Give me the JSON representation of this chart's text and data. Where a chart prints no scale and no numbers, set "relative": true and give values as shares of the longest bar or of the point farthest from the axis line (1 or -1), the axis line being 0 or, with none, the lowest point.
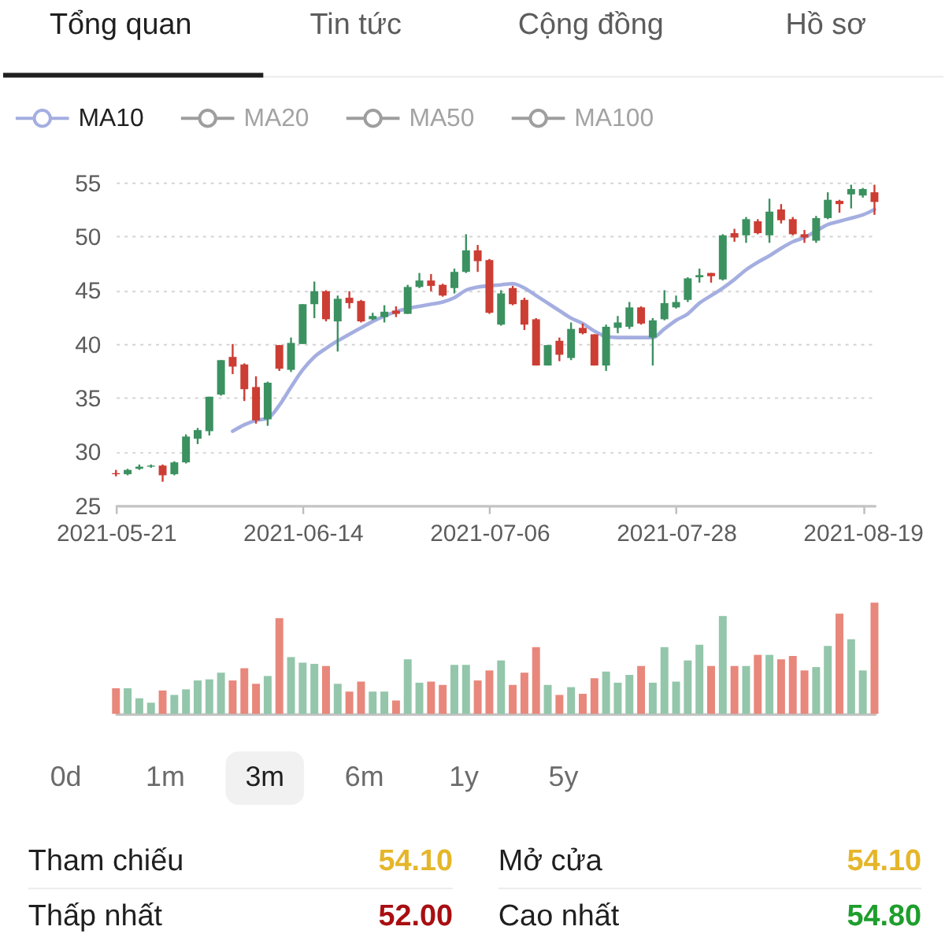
{
  "chart_data": [
    {
      "type": "other",
      "categories": [
        "Tổng quan",
        "Tin tức",
        "Cộng đồng",
        "Hồ sơ"
      ],
      "colors": [
        "#1f1f1f",
        "#5c5c5c",
        "#5c5c5c",
        "#5c5c5c"
      ]
    },
    {
      "type": "candlestick",
      "categories": [
        "2021-05-21",
        null,
        null,
        null,
        null,
        null,
        null,
        null,
        null,
        null,
        null,
        null,
        null,
        null,
        null,
        null,
        "2021-06-14",
        null,
        null,
        null,
        null,
        null,
        null,
        null,
        null,
        null,
        null,
        null,
        null,
        null,
        null,
        null,
        "2021-07-06",
        null,
        null,
        null,
        null,
        null,
        null,
        null,
        null,
        null,
        null,
        null,
        null,
        null,
        null,
        null,
        "2021-07-28",
        null,
        null,
        null,
        null,
        null,
        null,
        null,
        null,
        null,
        null,
        null,
        null,
        null,
        null,
        null,
        "2021-08-19",
        null
      ],
      "ohlc": [
        [
          28.0,
          28.3,
          27.7,
          27.9
        ],
        [
          27.9,
          28.4,
          27.8,
          28.3
        ],
        [
          28.4,
          28.8,
          28.3,
          28.6
        ],
        [
          28.6,
          28.8,
          28.5,
          28.7
        ],
        [
          28.7,
          28.8,
          27.2,
          27.8
        ],
        [
          27.9,
          29.1,
          27.8,
          29.0
        ],
        [
          29.0,
          31.6,
          28.9,
          31.4
        ],
        [
          31.2,
          32.2,
          30.7,
          32.0
        ],
        [
          31.9,
          35.1,
          31.5,
          35.1
        ],
        [
          35.3,
          38.5,
          35.2,
          38.5
        ],
        [
          38.8,
          40.0,
          37.2,
          37.9
        ],
        [
          38.1,
          38.2,
          34.7,
          35.8
        ],
        [
          36.0,
          37.0,
          32.6,
          32.9
        ],
        [
          33.0,
          36.5,
          32.4,
          36.4
        ],
        [
          39.9,
          39.9,
          37.5,
          37.7
        ],
        [
          37.6,
          40.6,
          37.4,
          40.1
        ],
        [
          40.0,
          43.7,
          40.0,
          43.7
        ],
        [
          43.7,
          45.8,
          42.4,
          44.9
        ],
        [
          44.9,
          45.0,
          42.1,
          42.3
        ],
        [
          42.1,
          44.5,
          39.3,
          44.2
        ],
        [
          44.3,
          44.9,
          43.3,
          43.8
        ],
        [
          44.0,
          44.1,
          42.0,
          42.1
        ],
        [
          42.3,
          42.9,
          42.2,
          42.6
        ],
        [
          42.5,
          43.6,
          42.0,
          43.0
        ],
        [
          43.1,
          43.5,
          42.5,
          42.8
        ],
        [
          42.8,
          45.5,
          42.8,
          45.3
        ],
        [
          45.3,
          46.6,
          45.2,
          45.9
        ],
        [
          45.9,
          46.5,
          44.9,
          45.4
        ],
        [
          45.5,
          45.6,
          44.4,
          44.5
        ],
        [
          45.2,
          47.0,
          44.7,
          46.7
        ],
        [
          46.7,
          50.2,
          46.6,
          48.7
        ],
        [
          48.7,
          49.2,
          46.7,
          47.7
        ],
        [
          47.8,
          47.9,
          42.8,
          42.9
        ],
        [
          41.8,
          45.0,
          41.7,
          44.7
        ],
        [
          45.2,
          45.4,
          43.6,
          43.7
        ],
        [
          44.1,
          44.3,
          41.3,
          41.8
        ],
        [
          42.3,
          42.4,
          38.0,
          38.0
        ],
        [
          38.0,
          39.9,
          38.0,
          39.9
        ],
        [
          40.3,
          40.6,
          38.4,
          39.0
        ],
        [
          38.7,
          42.0,
          38.5,
          41.4
        ],
        [
          41.5,
          41.9,
          40.9,
          41.0
        ],
        [
          40.9,
          40.9,
          38.0,
          38.0
        ],
        [
          38.0,
          41.8,
          37.5,
          41.6
        ],
        [
          41.5,
          42.6,
          41.0,
          42.0
        ],
        [
          41.6,
          43.9,
          41.4,
          43.4
        ],
        [
          43.4,
          43.5,
          41.8,
          41.9
        ],
        [
          40.6,
          42.4,
          38.0,
          42.2
        ],
        [
          42.3,
          45.0,
          42.2,
          43.8
        ],
        [
          43.4,
          44.5,
          43.3,
          43.9
        ],
        [
          44.1,
          46.2,
          43.9,
          46.1
        ],
        [
          46.2,
          47.0,
          45.7,
          46.4
        ],
        [
          46.6,
          46.6,
          45.7,
          46.3
        ],
        [
          46.0,
          50.2,
          45.9,
          50.1
        ],
        [
          50.3,
          50.7,
          49.5,
          49.9
        ],
        [
          50.1,
          51.8,
          49.4,
          51.6
        ],
        [
          51.4,
          51.6,
          50.2,
          50.3
        ],
        [
          50.1,
          53.5,
          49.4,
          52.3
        ],
        [
          52.5,
          53.0,
          51.2,
          51.5
        ],
        [
          51.6,
          51.8,
          50.1,
          50.2
        ],
        [
          50.2,
          50.6,
          49.4,
          49.9
        ],
        [
          49.6,
          51.9,
          49.4,
          51.7
        ],
        [
          51.7,
          54.1,
          51.6,
          53.4
        ],
        [
          53.3,
          53.4,
          52.2,
          53.0
        ],
        [
          53.9,
          54.8,
          52.6,
          54.4
        ],
        [
          53.8,
          54.5,
          53.6,
          54.4
        ],
        [
          54.1,
          54.8,
          52.0,
          53.2
        ]
      ],
      "colors": [
        "#cc3d33",
        "#3b9160",
        "#3b9160",
        "#3b9160",
        "#cc3d33",
        "#3b9160",
        "#3b9160",
        "#3b9160",
        "#3b9160",
        "#3b9160",
        "#cc3d33",
        "#cc3d33",
        "#cc3d33",
        "#3b9160",
        "#cc3d33",
        "#3b9160",
        "#3b9160",
        "#3b9160",
        "#cc3d33",
        "#3b9160",
        "#cc3d33",
        "#cc3d33",
        "#3b9160",
        "#3b9160",
        "#cc3d33",
        "#3b9160",
        "#3b9160",
        "#cc3d33",
        "#cc3d33",
        "#3b9160",
        "#3b9160",
        "#cc3d33",
        "#cc3d33",
        "#3b9160",
        "#cc3d33",
        "#cc3d33",
        "#cc3d33",
        "#3b9160",
        "#cc3d33",
        "#3b9160",
        "#cc3d33",
        "#cc3d33",
        "#3b9160",
        "#3b9160",
        "#3b9160",
        "#cc3d33",
        "#3b9160",
        "#3b9160",
        "#3b9160",
        "#3b9160",
        "#3b9160",
        "#cc3d33",
        "#3b9160",
        "#cc3d33",
        "#3b9160",
        "#cc3d33",
        "#3b9160",
        "#cc3d33",
        "#cc3d33",
        "#cc3d33",
        "#3b9160",
        "#3b9160",
        "#cc3d33",
        "#3b9160",
        "#3b9160",
        "#cc3d33"
      ],
      "series": [
        {
          "type": "line",
          "name": "MA10",
          "color": "#a4aee0",
          "values": [
            null,
            null,
            null,
            null,
            null,
            null,
            null,
            null,
            null,
            null,
            31.9,
            32.5,
            32.9,
            33.1,
            34.3,
            36.0,
            37.6,
            38.8,
            39.6,
            40.3,
            40.9,
            41.5,
            42.1,
            42.6,
            43.0,
            43.3,
            43.5,
            43.7,
            43.9,
            44.3,
            45.0,
            45.3,
            45.4,
            45.5,
            45.6,
            45.2,
            44.5,
            43.8,
            43.1,
            42.4,
            41.9,
            41.2,
            40.7,
            40.6,
            40.6,
            40.6,
            40.6,
            41.4,
            42.2,
            42.8,
            43.8,
            44.5,
            45.2,
            46.0,
            46.9,
            47.6,
            48.2,
            48.9,
            49.5,
            49.9,
            50.5,
            51.1,
            51.4,
            51.7,
            52.0,
            52.5
          ]
        },
        {
          "type": "line",
          "name": "MA20",
          "color": "#9e9e9e",
          "values": [
            null,
            null,
            null,
            null,
            null,
            null,
            null,
            null,
            null,
            null,
            null,
            null,
            null,
            null,
            null,
            null,
            null,
            null,
            null,
            null,
            null,
            null,
            null,
            null,
            null,
            null,
            null,
            null,
            null,
            null,
            null,
            null,
            null,
            null,
            null,
            null,
            null,
            null,
            null,
            null,
            null,
            null,
            null,
            null,
            null,
            null,
            null,
            null,
            null,
            null,
            null,
            null,
            null,
            null,
            null,
            null,
            null,
            null,
            null,
            null,
            null,
            null,
            null,
            null,
            null,
            null
          ]
        },
        {
          "type": "line",
          "name": "MA50",
          "color": "#9e9e9e",
          "values": [
            null,
            null,
            null,
            null,
            null,
            null,
            null,
            null,
            null,
            null,
            null,
            null,
            null,
            null,
            null,
            null,
            null,
            null,
            null,
            null,
            null,
            null,
            null,
            null,
            null,
            null,
            null,
            null,
            null,
            null,
            null,
            null,
            null,
            null,
            null,
            null,
            null,
            null,
            null,
            null,
            null,
            null,
            null,
            null,
            null,
            null,
            null,
            null,
            null,
            null,
            null,
            null,
            null,
            null,
            null,
            null,
            null,
            null,
            null,
            null,
            null,
            null,
            null,
            null,
            null,
            null
          ]
        },
        {
          "type": "line",
          "name": "MA100",
          "color": "#9e9e9e",
          "values": [
            null,
            null,
            null,
            null,
            null,
            null,
            null,
            null,
            null,
            null,
            null,
            null,
            null,
            null,
            null,
            null,
            null,
            null,
            null,
            null,
            null,
            null,
            null,
            null,
            null,
            null,
            null,
            null,
            null,
            null,
            null,
            null,
            null,
            null,
            null,
            null,
            null,
            null,
            null,
            null,
            null,
            null,
            null,
            null,
            null,
            null,
            null,
            null,
            null,
            null,
            null,
            null,
            null,
            null,
            null,
            null,
            null,
            null,
            null,
            null,
            null,
            null,
            null,
            null,
            null,
            null
          ]
        }
      ],
      "ylim": [
        25,
        55
      ],
      "yticks": [
        25,
        30,
        35,
        40,
        45,
        50,
        55
      ],
      "grid": "y",
      "legend": "top left"
    },
    {
      "type": "bar",
      "relative": true,
      "tick_labels": false,
      "categories": [
        "2021-05-21",
        null,
        null,
        null,
        null,
        null,
        null,
        null,
        null,
        null,
        null,
        null,
        null,
        null,
        null,
        null,
        "2021-06-14",
        null,
        null,
        null,
        null,
        null,
        null,
        null,
        null,
        null,
        null,
        null,
        null,
        null,
        null,
        null,
        "2021-07-06",
        null,
        null,
        null,
        null,
        null,
        null,
        null,
        null,
        null,
        null,
        null,
        null,
        null,
        null,
        null,
        "2021-07-28",
        null,
        null,
        null,
        null,
        null,
        null,
        null,
        null,
        null,
        null,
        null,
        null,
        null,
        null,
        null,
        "2021-08-19",
        null
      ],
      "values": [
        0.23,
        0.23,
        0.14,
        0.1,
        0.21,
        0.17,
        0.22,
        0.3,
        0.31,
        0.37,
        0.3,
        0.41,
        0.27,
        0.34,
        0.86,
        0.51,
        0.46,
        0.45,
        0.43,
        0.27,
        0.2,
        0.29,
        0.2,
        0.2,
        0.12,
        0.49,
        0.28,
        0.29,
        0.26,
        0.44,
        0.44,
        0.3,
        0.39,
        0.48,
        0.26,
        0.37,
        0.6,
        0.26,
        0.17,
        0.24,
        0.18,
        0.32,
        0.38,
        0.28,
        0.35,
        0.43,
        0.28,
        0.6,
        0.29,
        0.48,
        0.62,
        0.43,
        0.88,
        0.43,
        0.43,
        0.53,
        0.53,
        0.49,
        0.52,
        0.39,
        0.42,
        0.61,
        0.9,
        0.67,
        0.39,
        1
      ],
      "colors": [
        "#e8877b",
        "#93c6aa",
        "#93c6aa",
        "#93c6aa",
        "#e8877b",
        "#93c6aa",
        "#93c6aa",
        "#93c6aa",
        "#93c6aa",
        "#93c6aa",
        "#e8877b",
        "#e8877b",
        "#e8877b",
        "#93c6aa",
        "#e8877b",
        "#93c6aa",
        "#93c6aa",
        "#93c6aa",
        "#e8877b",
        "#93c6aa",
        "#e8877b",
        "#e8877b",
        "#93c6aa",
        "#93c6aa",
        "#e8877b",
        "#93c6aa",
        "#93c6aa",
        "#e8877b",
        "#e8877b",
        "#93c6aa",
        "#93c6aa",
        "#e8877b",
        "#e8877b",
        "#93c6aa",
        "#e8877b",
        "#e8877b",
        "#e8877b",
        "#93c6aa",
        "#e8877b",
        "#93c6aa",
        "#e8877b",
        "#e8877b",
        "#93c6aa",
        "#93c6aa",
        "#93c6aa",
        "#e8877b",
        "#93c6aa",
        "#93c6aa",
        "#93c6aa",
        "#93c6aa",
        "#93c6aa",
        "#e8877b",
        "#93c6aa",
        "#e8877b",
        "#93c6aa",
        "#e8877b",
        "#93c6aa",
        "#e8877b",
        "#e8877b",
        "#e8877b",
        "#93c6aa",
        "#93c6aa",
        "#e8877b",
        "#93c6aa",
        "#93c6aa",
        "#e8877b"
      ]
    },
    {
      "type": "other",
      "categories": [
        "0d",
        "1m",
        "3m",
        "6m",
        "1y",
        "5y"
      ],
      "colors": [
        "#ffffff",
        "#ffffff",
        "#f1f1f1",
        "#ffffff",
        "#ffffff",
        "#ffffff"
      ]
    },
    {
      "type": "other",
      "categories": [
        "Tham chiếu",
        "Mở cửa",
        "Thấp nhất",
        "Cao nhất"
      ],
      "value_labels": [
        "54.10",
        "54.10",
        "52.00",
        "54.80"
      ],
      "colors": [
        "#e5b62a",
        "#e5b62a",
        "#a80f12",
        "#1e9e2c"
      ]
    }
  ]
}
